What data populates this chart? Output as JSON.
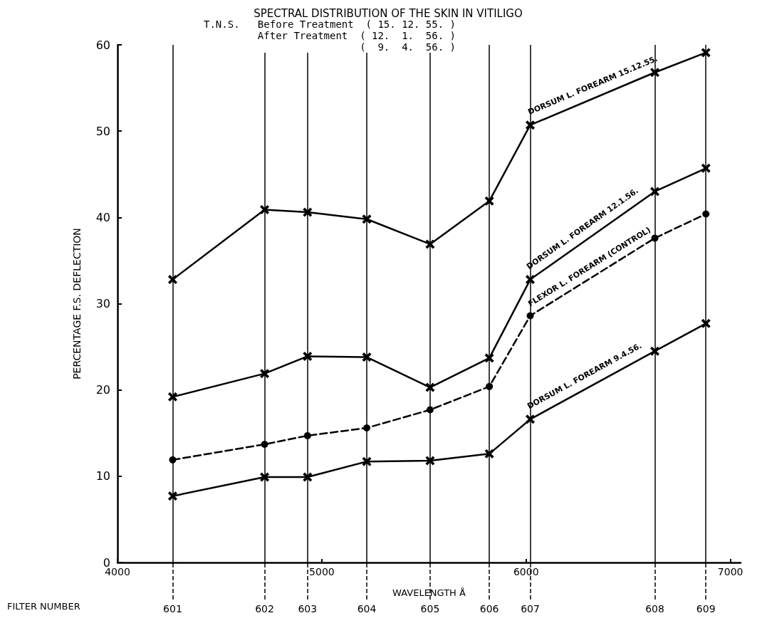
{
  "chart_data": {
    "type": "line",
    "title": "SPECTRAL DISTRIBUTION OF THE SKIN IN VITILIGO",
    "subtitle": "T.N.S.   Before Treatment  ( 15. 12. 55. )\nAfter Treatment  ( 12.  1.  56. )\n(  9.  4.  56. )",
    "xlabel": "WAVELENGTH Å",
    "ylabel": "PERCENTAGE F.S. DEFLECTION",
    "annotations": [
      "FILTER NUMBER",
      {
        "text": "601",
        "x": 4270,
        "y": 0
      },
      {
        "text": "602",
        "x": 4720,
        "y": 0
      },
      {
        "text": "603",
        "x": 4930,
        "y": 0
      },
      {
        "text": "604",
        "x": 5220,
        "y": 0
      },
      {
        "text": "605",
        "x": 5530,
        "y": 0
      },
      {
        "text": "606",
        "x": 5820,
        "y": 0
      },
      {
        "text": "607",
        "x": 6020,
        "y": 0
      },
      {
        "text": "608",
        "x": 6630,
        "y": 0
      },
      {
        "text": "609",
        "x": 6880,
        "y": 0
      }
    ],
    "x": [
      4270,
      4720,
      4930,
      5220,
      5530,
      5820,
      6020,
      6630,
      6880
    ],
    "series": [
      {
        "name": "DORSUM L. FOREARM 15.12.55.",
        "color": "#000000",
        "marker": "cross",
        "line_style": "solid",
        "values": [
          32.8,
          40.9,
          40.6,
          39.8,
          36.9,
          41.9,
          50.7,
          56.8,
          59.1
        ]
      },
      {
        "name": "DORSUM L. FOREARM 12.1.56.",
        "color": "#000000",
        "marker": "cross",
        "line_style": "solid",
        "values": [
          19.2,
          21.9,
          23.9,
          23.8,
          20.3,
          23.7,
          32.8,
          43.0,
          45.7
        ]
      },
      {
        "name": "FLEXOR L. FOREARM (CONTROL)",
        "color": "#000000",
        "marker": "circle",
        "line_style": "dashed",
        "values": [
          11.9,
          13.7,
          14.7,
          15.6,
          17.7,
          20.4,
          28.6,
          37.6,
          40.4
        ]
      },
      {
        "name": "DORSUM L. FOREARM 9.4.56.",
        "color": "#000000",
        "marker": "cross",
        "line_style": "solid",
        "values": [
          7.7,
          9.9,
          9.9,
          11.7,
          11.8,
          12.6,
          16.6,
          24.5,
          27.7
        ]
      }
    ],
    "xlim": [
      4000,
      7050
    ],
    "xticks": [
      4000,
      5000,
      6000,
      7000
    ],
    "ref_lines": [
      {
        "axis": "x",
        "value": 4270
      },
      {
        "axis": "x",
        "value": 4720
      },
      {
        "axis": "x",
        "value": 4930
      },
      {
        "axis": "x",
        "value": 5220
      },
      {
        "axis": "x",
        "value": 5530
      },
      {
        "axis": "x",
        "value": 5820
      },
      {
        "axis": "x",
        "value": 6020
      },
      {
        "axis": "x",
        "value": 6630
      },
      {
        "axis": "x",
        "value": 6880
      }
    ],
    "ylim": [
      0,
      60
    ],
    "yticks": [
      0,
      10,
      20,
      30,
      40,
      50,
      60
    ],
    "legend": false
  }
}
